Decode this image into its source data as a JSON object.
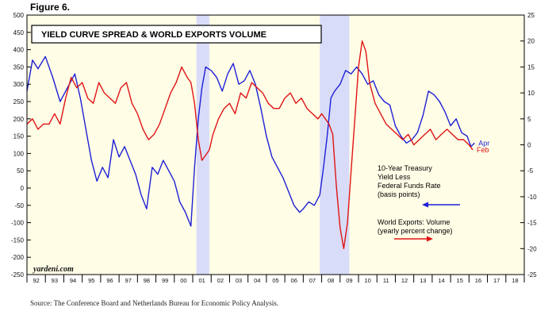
{
  "figure_label": "Figure 6.",
  "source_note": "Source: The Conference Board and Netherlands Bureau for Economic Policy Analysis.",
  "watermark": "yardeni.com",
  "colors": {
    "background": "#fffde6",
    "recession": "#d8dcf8",
    "spread": "#1f1fd6",
    "exports": "#e01414",
    "frame": "#000000"
  },
  "chart_data": {
    "type": "line",
    "title": "YIELD CURVE SPREAD & WORLD EXPORTS VOLUME",
    "x_tick_labels": [
      "92",
      "93",
      "94",
      "95",
      "96",
      "97",
      "98",
      "99",
      "00",
      "01",
      "02",
      "03",
      "04",
      "05",
      "06",
      "07",
      "08",
      "09",
      "10",
      "11",
      "12",
      "13",
      "14",
      "15",
      "16",
      "17",
      "18"
    ],
    "xlim": [
      1992,
      2019
    ],
    "left_axis": {
      "ylim": [
        -250,
        500
      ],
      "ticks": [
        -250,
        -200,
        -150,
        -100,
        -50,
        0,
        50,
        100,
        150,
        200,
        250,
        300,
        350,
        400,
        450,
        500
      ]
    },
    "right_axis": {
      "ylim": [
        -25,
        25
      ],
      "ticks": [
        -25,
        -20,
        -15,
        -10,
        -5,
        0,
        5,
        10,
        15,
        20,
        25
      ]
    },
    "grid": false,
    "recession_bands": [
      [
        2001.2,
        2001.9
      ],
      [
        2007.9,
        2009.5
      ]
    ],
    "series": [
      {
        "name": "10-Year Treasury Yield Less Federal Funds Rate (basis points)",
        "axis": "left",
        "end_label": "Apr",
        "x": [
          1992.0,
          1992.3,
          1992.6,
          1993.0,
          1993.4,
          1993.8,
          1994.2,
          1994.6,
          1994.9,
          1995.2,
          1995.5,
          1995.8,
          1996.1,
          1996.4,
          1996.7,
          1997.0,
          1997.3,
          1997.6,
          1997.9,
          1998.2,
          1998.5,
          1998.8,
          1999.1,
          1999.4,
          1999.7,
          2000.0,
          2000.3,
          2000.6,
          2000.9,
          2001.1,
          2001.3,
          2001.5,
          2001.7,
          2002.0,
          2002.3,
          2002.6,
          2002.9,
          2003.2,
          2003.5,
          2003.8,
          2004.1,
          2004.4,
          2004.7,
          2005.0,
          2005.3,
          2005.6,
          2005.9,
          2006.2,
          2006.5,
          2006.8,
          2007.0,
          2007.3,
          2007.6,
          2007.9,
          2008.1,
          2008.3,
          2008.5,
          2008.7,
          2009.0,
          2009.3,
          2009.6,
          2009.9,
          2010.2,
          2010.5,
          2010.8,
          2011.1,
          2011.4,
          2011.7,
          2012.0,
          2012.3,
          2012.6,
          2012.9,
          2013.2,
          2013.5,
          2013.8,
          2014.1,
          2014.4,
          2014.7,
          2015.0,
          2015.3,
          2015.6,
          2015.9,
          2016.1,
          2016.3
        ],
        "values": [
          280,
          370,
          345,
          380,
          320,
          250,
          290,
          330,
          260,
          170,
          80,
          20,
          60,
          30,
          140,
          90,
          120,
          80,
          40,
          -20,
          -60,
          60,
          40,
          80,
          50,
          20,
          -40,
          -70,
          -110,
          60,
          200,
          290,
          350,
          340,
          320,
          280,
          330,
          360,
          300,
          310,
          340,
          300,
          230,
          150,
          90,
          60,
          30,
          -10,
          -50,
          -70,
          -60,
          -40,
          -50,
          -20,
          60,
          150,
          260,
          280,
          300,
          340,
          330,
          350,
          330,
          300,
          310,
          270,
          250,
          240,
          180,
          150,
          130,
          140,
          160,
          210,
          280,
          270,
          250,
          220,
          180,
          200,
          160,
          150,
          120,
          130
        ]
      },
      {
        "name": "World Exports: Volume (yearly percent change)",
        "axis": "right",
        "end_label": "Feb",
        "x": [
          1992.0,
          1992.3,
          1992.6,
          1992.9,
          1993.2,
          1993.5,
          1993.8,
          1994.1,
          1994.4,
          1994.7,
          1995.0,
          1995.3,
          1995.6,
          1995.9,
          1996.2,
          1996.5,
          1996.8,
          1997.1,
          1997.4,
          1997.7,
          1998.0,
          1998.3,
          1998.6,
          1998.9,
          1999.2,
          1999.5,
          1999.8,
          2000.1,
          2000.4,
          2000.7,
          2000.9,
          2001.1,
          2001.3,
          2001.5,
          2001.7,
          2001.9,
          2002.1,
          2002.4,
          2002.7,
          2003.0,
          2003.3,
          2003.6,
          2003.9,
          2004.2,
          2004.5,
          2004.8,
          2005.1,
          2005.4,
          2005.7,
          2006.0,
          2006.3,
          2006.6,
          2006.9,
          2007.2,
          2007.5,
          2007.8,
          2008.0,
          2008.2,
          2008.4,
          2008.6,
          2008.8,
          2009.0,
          2009.2,
          2009.4,
          2009.6,
          2009.8,
          2010.0,
          2010.2,
          2010.4,
          2010.6,
          2010.9,
          2011.2,
          2011.5,
          2011.8,
          2012.1,
          2012.4,
          2012.7,
          2013.0,
          2013.3,
          2013.6,
          2013.9,
          2014.2,
          2014.5,
          2014.8,
          2015.1,
          2015.4,
          2015.7,
          2016.0,
          2016.2
        ],
        "values": [
          4,
          5,
          3,
          4,
          4,
          6,
          4,
          9,
          13,
          11,
          12,
          9,
          8,
          12,
          10,
          9,
          8,
          11,
          12,
          8,
          6,
          3,
          1,
          2,
          4,
          7,
          10,
          12,
          15,
          13,
          12,
          8,
          1,
          -3,
          -2,
          -1,
          2,
          5,
          7,
          8,
          6,
          10,
          9,
          12,
          11,
          10,
          8,
          7,
          7,
          9,
          10,
          8,
          9,
          7,
          6,
          5,
          6,
          5,
          4,
          2,
          -8,
          -16,
          -20,
          -15,
          -5,
          5,
          15,
          20,
          18,
          12,
          8,
          6,
          4,
          3,
          2,
          1,
          2,
          0,
          1,
          2,
          3,
          1,
          2,
          3,
          2,
          1,
          1,
          0,
          -1
        ]
      }
    ],
    "legend": [
      {
        "label_lines": [
          "10-Year Treasury",
          "Yield Less",
          "Federal Funds Rate",
          "(basis points)"
        ],
        "series": 0
      },
      {
        "label_lines": [
          "World Exports: Volume",
          "(yearly percent change)"
        ],
        "series": 1
      }
    ]
  }
}
